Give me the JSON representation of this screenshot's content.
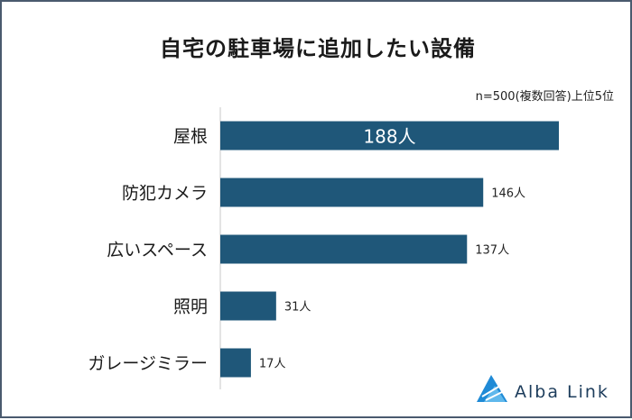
{
  "chart_data": {
    "type": "bar",
    "orientation": "horizontal",
    "title": "自宅の駐車場に追加したい設備",
    "note": "n=500(複数回答)上位5位",
    "categories": [
      "屋根",
      "防犯カメラ",
      "広いスペース",
      "照明",
      "ガレージミラー"
    ],
    "values": [
      188,
      146,
      137,
      31,
      17
    ],
    "value_labels": [
      "188人",
      "146人",
      "137人",
      "31人",
      "17人"
    ],
    "xlim": [
      0,
      188
    ],
    "grid": false,
    "bar_color": "#1f5779"
  },
  "brand": {
    "name": "Alba Link",
    "color": "#1d3d5c",
    "accent": "#1f8ad6"
  }
}
